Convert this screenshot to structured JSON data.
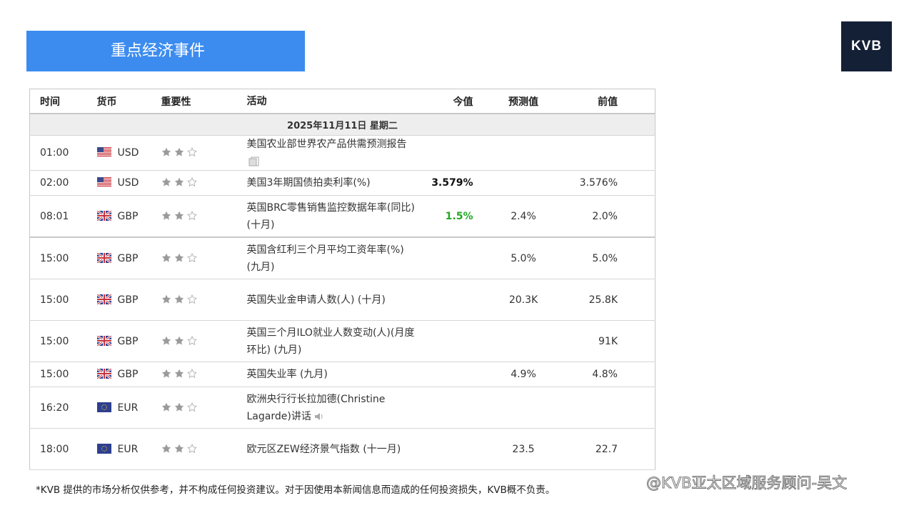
{
  "header": {
    "title": "重点经济事件",
    "logo": "KVB"
  },
  "table": {
    "columns": [
      "时间",
      "货币",
      "重要性",
      "活动",
      "今值",
      "预测值",
      "前值"
    ],
    "date": "2025年11月11日  星期二",
    "rows": [
      {
        "time": "01:00",
        "flag": "us",
        "currency": "USD",
        "importance": 2,
        "event": "美国农业部世界农产品供需预测报告",
        "icon": "doc",
        "actual": null,
        "forecast": null,
        "previous": null
      },
      {
        "time": "02:00",
        "flag": "us",
        "currency": "USD",
        "importance": 2,
        "event": "美国3年期国债拍卖利率(%)",
        "actual": "3.579%",
        "actual_color": "#111111",
        "forecast": null,
        "previous": "3.576%"
      },
      {
        "time": "08:01",
        "flag": "gb",
        "currency": "GBP",
        "importance": 2,
        "event": "英国BRC零售销售监控数据年率(同比) (十月)",
        "actual": "1.5%",
        "actual_color": "#22a822",
        "forecast": "2.4%",
        "previous": "2.0%"
      },
      {
        "time": "15:00",
        "flag": "gb",
        "currency": "GBP",
        "importance": 2,
        "event": "英国含红利三个月平均工资年率(%) (九月)",
        "actual": null,
        "forecast": "5.0%",
        "previous": "5.0%"
      },
      {
        "time": "15:00",
        "flag": "gb",
        "currency": "GBP",
        "importance": 2,
        "event": "英国失业金申请人数(人) (十月)",
        "actual": null,
        "forecast": "20.3K",
        "previous": "25.8K"
      },
      {
        "time": "15:00",
        "flag": "gb",
        "currency": "GBP",
        "importance": 2,
        "event": "英国三个月ILO就业人数变动(人)(月度环比) (九月)",
        "actual": null,
        "forecast": null,
        "previous": "91K"
      },
      {
        "time": "15:00",
        "flag": "gb",
        "currency": "GBP",
        "importance": 2,
        "event": "英国失业率 (九月)",
        "actual": null,
        "forecast": "4.9%",
        "previous": "4.8%"
      },
      {
        "time": "16:20",
        "flag": "eu",
        "currency": "EUR",
        "importance": 2,
        "event": "欧洲央行行长拉加德(Christine Lagarde)讲话",
        "icon": "speaker",
        "actual": null,
        "forecast": null,
        "previous": null
      },
      {
        "time": "18:00",
        "flag": "eu",
        "currency": "EUR",
        "importance": 2,
        "event": "欧元区ZEW经济景气指数 (十一月)",
        "actual": null,
        "forecast": "23.5",
        "previous": "22.7"
      }
    ]
  },
  "footer": {
    "disclaimer": "*KVB 提供的市场分析仅供参考，并不构成任何投资建议。对于因使用本新闻信息而造成的任何投资损失，KVB概不负责。",
    "watermark": "@KVB亚太区域服务顾问-吴文"
  }
}
